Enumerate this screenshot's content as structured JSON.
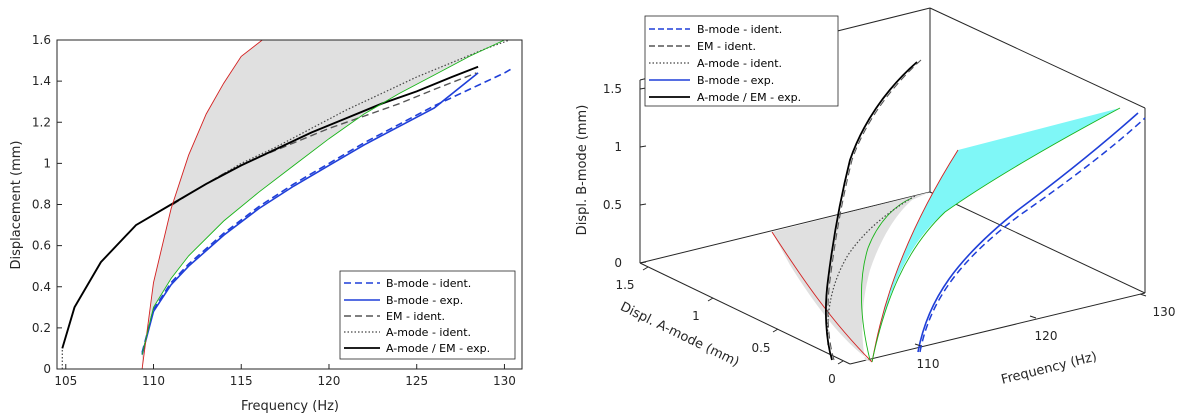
{
  "colors": {
    "b_mode": "#1f3fd8",
    "em": "#555555",
    "a_mode_ident": "#444444",
    "a_mode_exp": "#000000",
    "red_boundary": "#d42020",
    "green_boundary": "#18b418",
    "shade_2d": "#e0e0e0",
    "shade_3d": "#7ff7f7"
  },
  "chart_data": [
    {
      "type": "line",
      "xlabel": "Frequency (Hz)",
      "ylabel": "Displacement (mm)",
      "xlim": [
        104.5,
        131
      ],
      "ylim": [
        0,
        1.6
      ],
      "xticks": [
        "105",
        "110",
        "115",
        "120",
        "125",
        "130"
      ],
      "yticks": [
        "0",
        "0.2",
        "0.4",
        "0.6",
        "0.8",
        "1",
        "1.2",
        "1.4",
        "1.6"
      ],
      "grid": false,
      "legend_position": "bottom-right",
      "legend": [
        "B-mode - ident.",
        "B-mode - exp.",
        "EM - ident.",
        "A-mode - ident.",
        "A-mode / EM - exp."
      ],
      "series": [
        {
          "name": "B-mode - ident.",
          "x": [
            109.35,
            110,
            111,
            112,
            114,
            116,
            118,
            120,
            122,
            124,
            126,
            128,
            130,
            130.4
          ],
          "y": [
            0.08,
            0.29,
            0.42,
            0.51,
            0.66,
            0.79,
            0.9,
            1.0,
            1.1,
            1.19,
            1.28,
            1.36,
            1.44,
            1.46
          ]
        },
        {
          "name": "B-mode - exp.",
          "x": [
            109.35,
            110,
            111,
            112,
            114,
            116,
            118,
            120,
            122,
            124,
            126,
            128.5
          ],
          "y": [
            0.07,
            0.28,
            0.41,
            0.5,
            0.65,
            0.78,
            0.89,
            0.99,
            1.09,
            1.18,
            1.27,
            1.44
          ]
        },
        {
          "name": "EM - ident.",
          "x": [
            111.1,
            112,
            114,
            116,
            118,
            120,
            122,
            124,
            126,
            128.4
          ],
          "y": [
            0.8,
            0.85,
            0.95,
            1.03,
            1.1,
            1.17,
            1.23,
            1.29,
            1.36,
            1.44
          ]
        },
        {
          "name": "A-mode - ident.",
          "x": [
            104.8,
            104.8,
            105.5,
            107,
            109,
            111,
            113,
            115,
            117,
            119,
            121,
            123,
            125,
            127,
            129,
            130.3
          ],
          "y": [
            0.0,
            0.1,
            0.3,
            0.52,
            0.7,
            0.8,
            0.9,
            1.0,
            1.08,
            1.17,
            1.26,
            1.34,
            1.42,
            1.49,
            1.56,
            1.6
          ]
        },
        {
          "name": "A-mode / EM - exp.",
          "x": [
            104.8,
            105.5,
            107,
            109,
            111,
            113,
            115,
            117,
            119,
            121,
            123,
            125,
            127,
            128.5
          ],
          "y": [
            0.1,
            0.3,
            0.52,
            0.7,
            0.8,
            0.9,
            0.99,
            1.07,
            1.15,
            1.22,
            1.29,
            1.35,
            1.42,
            1.47
          ]
        },
        {
          "name": "",
          "x": [
            109.35,
            110,
            111,
            112,
            113,
            114,
            115,
            116.2
          ],
          "y": [
            0.0,
            0.42,
            0.78,
            1.04,
            1.24,
            1.39,
            1.52,
            1.6
          ]
        },
        {
          "name": "",
          "x": [
            109.35,
            110,
            111,
            112,
            114,
            116,
            118,
            120,
            122,
            124,
            126,
            128,
            130
          ],
          "y": [
            0.07,
            0.3,
            0.44,
            0.55,
            0.72,
            0.86,
            0.99,
            1.12,
            1.24,
            1.34,
            1.43,
            1.52,
            1.6
          ]
        }
      ]
    },
    {
      "type": "line",
      "projection": "3d",
      "xlabel": "Frequency (Hz)",
      "ylabel": "Displ. A-mode (mm)",
      "zlabel": "Displ. B-mode (mm)",
      "xticks": [
        "110",
        "120",
        "130"
      ],
      "yticks": [
        "0",
        "0.5",
        "1",
        "1.5"
      ],
      "zticks": [
        "0",
        "0.5",
        "1",
        "1.5"
      ],
      "xlim": [
        109,
        131
      ],
      "ylim": [
        0,
        1.6
      ],
      "zlim": [
        0,
        1.6
      ],
      "legend_position": "top-left",
      "legend": [
        "B-mode - ident.",
        "EM - ident.",
        "A-mode - ident.",
        "B-mode - exp.",
        "A-mode / EM - exp."
      ],
      "series": [
        {
          "name": "B-mode - ident.",
          "x": [
            110.5,
            112,
            114,
            116,
            118,
            120,
            122,
            124,
            126,
            128,
            130
          ],
          "a": [
            0,
            0,
            0,
            0,
            0,
            0,
            0,
            0,
            0,
            0,
            0
          ],
          "b": [
            0.0,
            0.35,
            0.55,
            0.7,
            0.82,
            0.92,
            1.02,
            1.11,
            1.19,
            1.27,
            1.35
          ]
        },
        {
          "name": "B-mode - exp.",
          "x": [
            110.5,
            112,
            114,
            116,
            118,
            120,
            122,
            124,
            126,
            128,
            129.5
          ],
          "a": [
            0,
            0,
            0,
            0,
            0,
            0,
            0,
            0,
            0,
            0,
            0
          ],
          "b": [
            0.0,
            0.36,
            0.57,
            0.72,
            0.85,
            0.96,
            1.06,
            1.15,
            1.23,
            1.31,
            1.37
          ]
        },
        {
          "name": "EM - ident.",
          "x": [
            109.0,
            110,
            111,
            112,
            114,
            116,
            118,
            120,
            122,
            124,
            126,
            128.4
          ],
          "a": [
            0.0,
            0.05,
            0.15,
            0.25,
            0.42,
            0.6,
            0.78,
            0.95,
            1.1,
            1.25,
            1.4,
            1.55
          ],
          "b": [
            0.0,
            0.0,
            0.0,
            0.0,
            0.0,
            0.0,
            0.0,
            0.0,
            0.0,
            0.0,
            0.0,
            0.0
          ]
        },
        {
          "name": "A-mode - ident.",
          "x": [
            109.5,
            110,
            112,
            114,
            116,
            118,
            120,
            122,
            124,
            126,
            128,
            130.3
          ],
          "a": [
            0.0,
            0.1,
            0.3,
            0.48,
            0.62,
            0.75,
            0.88,
            1.0,
            1.12,
            1.24,
            1.36,
            1.5
          ],
          "b": [
            0,
            0,
            0,
            0,
            0,
            0,
            0,
            0,
            0,
            0,
            0,
            0
          ]
        },
        {
          "name": "A-mode / EM - exp.",
          "x": [
            109.0,
            110,
            111,
            112,
            114,
            116,
            118,
            120,
            122,
            124,
            126,
            128.5
          ],
          "a": [
            0.0,
            0.05,
            0.15,
            0.25,
            0.42,
            0.6,
            0.78,
            0.95,
            1.1,
            1.25,
            1.4,
            1.55
          ],
          "b": [
            0.0,
            0.0,
            0.0,
            0.0,
            0.0,
            0.0,
            0.0,
            0.0,
            0.0,
            0.0,
            0.0,
            0.0
          ]
        }
      ]
    }
  ]
}
